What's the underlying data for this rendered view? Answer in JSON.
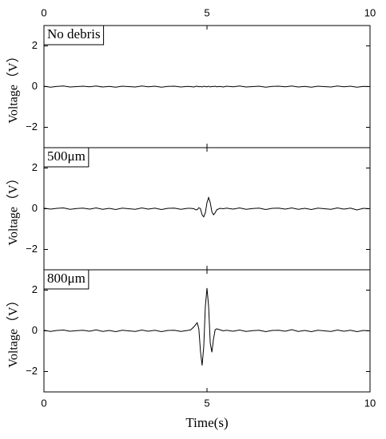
{
  "chart_data": [
    {
      "type": "line",
      "annotation": "No debris",
      "ylabel": "Voltage（V）",
      "x": [
        0,
        0.2,
        0.4,
        0.6,
        0.8,
        1,
        1.2,
        1.4,
        1.6,
        1.8,
        2,
        2.2,
        2.4,
        2.6,
        2.8,
        3,
        3.2,
        3.4,
        3.6,
        3.8,
        4,
        4.2,
        4.4,
        4.5,
        4.6,
        4.65,
        4.7,
        4.75,
        4.8,
        4.85,
        4.9,
        4.95,
        5,
        5.05,
        5.1,
        5.15,
        5.2,
        5.25,
        5.3,
        5.4,
        5.5,
        5.6,
        5.8,
        6,
        6.2,
        6.4,
        6.6,
        6.8,
        7,
        7.2,
        7.4,
        7.6,
        7.8,
        8,
        8.2,
        8.4,
        8.6,
        8.8,
        9,
        9.2,
        9.4,
        9.6,
        9.8,
        10
      ],
      "values": [
        0.02,
        -0.03,
        0.01,
        0.03,
        -0.02,
        0,
        0.02,
        -0.01,
        0.03,
        -0.02,
        0.01,
        -0.03,
        0.02,
        0,
        -0.02,
        0.03,
        -0.01,
        0.02,
        -0.03,
        0.01,
        0.02,
        -0.02,
        0.01,
        0,
        -0.02,
        0.01,
        0.02,
        -0.01,
        0.01,
        -0.02,
        0.02,
        0,
        -0.01,
        0.02,
        -0.02,
        0.01,
        0,
        0.02,
        -0.01,
        0.01,
        -0.02,
        0.02,
        -0.01,
        0.03,
        -0.02,
        0,
        0.02,
        -0.03,
        0.01,
        0.02,
        -0.01,
        0.03,
        -0.02,
        0.01,
        -0.03,
        0.02,
        0,
        -0.02,
        0.03,
        -0.01,
        0.02,
        -0.03,
        0.01,
        0
      ],
      "color": "#000000",
      "xlim": [
        0,
        10
      ],
      "xticks": [
        0,
        5,
        10
      ],
      "xticks_position": "top",
      "ylim": [
        -3,
        3
      ],
      "yticks": [
        {
          "value": -2,
          "label": "−2"
        },
        0,
        2
      ]
    },
    {
      "type": "line",
      "annotation": "500μm",
      "ylabel": "Voltage（V）",
      "x": [
        0,
        0.2,
        0.4,
        0.6,
        0.8,
        1,
        1.2,
        1.4,
        1.6,
        1.8,
        2,
        2.2,
        2.4,
        2.6,
        2.8,
        3,
        3.2,
        3.4,
        3.6,
        3.8,
        4,
        4.2,
        4.4,
        4.5,
        4.6,
        4.65,
        4.7,
        4.75,
        4.8,
        4.85,
        4.9,
        4.95,
        5,
        5.05,
        5.1,
        5.15,
        5.2,
        5.25,
        5.3,
        5.4,
        5.5,
        5.6,
        5.8,
        6,
        6.2,
        6.4,
        6.6,
        6.8,
        7,
        7.2,
        7.4,
        7.6,
        7.8,
        8,
        8.2,
        8.4,
        8.6,
        8.8,
        9,
        9.2,
        9.4,
        9.6,
        9.8,
        10
      ],
      "values": [
        0.03,
        -0.02,
        0.02,
        0.04,
        -0.03,
        0.01,
        0.03,
        -0.02,
        0.04,
        -0.03,
        0.02,
        -0.04,
        0.03,
        0,
        -0.03,
        0.04,
        -0.02,
        0.03,
        -0.04,
        0.02,
        0.03,
        -0.03,
        0.02,
        0.02,
        0,
        -0.05,
        -0.05,
        0.05,
        0,
        -0.3,
        -0.4,
        -0.2,
        0.3,
        0.55,
        0.3,
        -0.15,
        -0.3,
        -0.2,
        -0.05,
        0.02,
        0,
        0.03,
        -0.02,
        0.04,
        -0.03,
        0.01,
        0.03,
        -0.04,
        0.02,
        0.03,
        -0.02,
        0.04,
        -0.03,
        0.02,
        -0.04,
        0.03,
        0,
        -0.03,
        0.04,
        -0.02,
        0.03,
        -0.06,
        0.02,
        0
      ],
      "color": "#000000",
      "xlim": [
        0,
        10
      ],
      "xticks": [
        0,
        5,
        10
      ],
      "ylim": [
        -3,
        3
      ],
      "yticks": [
        {
          "value": -2,
          "label": "−2"
        },
        0,
        2
      ]
    },
    {
      "type": "line",
      "annotation": "800μm",
      "ylabel": "Voltage（V）",
      "xlabel": "Time(s)",
      "x": [
        0,
        0.2,
        0.4,
        0.6,
        0.8,
        1,
        1.2,
        1.4,
        1.6,
        1.8,
        2,
        2.2,
        2.4,
        2.6,
        2.8,
        3,
        3.2,
        3.4,
        3.6,
        3.8,
        4,
        4.2,
        4.4,
        4.5,
        4.6,
        4.65,
        4.7,
        4.75,
        4.8,
        4.85,
        4.9,
        4.95,
        5,
        5.05,
        5.1,
        5.15,
        5.2,
        5.25,
        5.3,
        5.4,
        5.5,
        5.6,
        5.8,
        6,
        6.2,
        6.4,
        6.6,
        6.8,
        7,
        7.2,
        7.4,
        7.6,
        7.8,
        8,
        8.2,
        8.4,
        8.6,
        8.8,
        9,
        9.2,
        9.4,
        9.6,
        9.8,
        10
      ],
      "values": [
        0.03,
        -0.03,
        0.02,
        0.04,
        -0.02,
        0.01,
        0.03,
        -0.02,
        0.05,
        -0.03,
        0.02,
        -0.04,
        0.03,
        0,
        -0.03,
        0.04,
        -0.02,
        0.03,
        -0.04,
        0.02,
        0.03,
        -0.03,
        0.02,
        0.05,
        0.2,
        0.3,
        0.4,
        0.1,
        -1.0,
        -1.7,
        -0.8,
        1.2,
        2.1,
        1.2,
        -0.6,
        -1.05,
        -0.4,
        0.05,
        0.1,
        0.05,
        0,
        0.03,
        -0.02,
        0.04,
        -0.03,
        0.01,
        0.03,
        -0.04,
        0.02,
        0.03,
        -0.02,
        0.06,
        -0.03,
        0.02,
        -0.04,
        0.03,
        0,
        -0.03,
        0.04,
        -0.02,
        0.03,
        -0.04,
        0.02,
        0
      ],
      "color": "#000000",
      "xlim": [
        0,
        10
      ],
      "xticks": [
        0,
        5,
        10
      ],
      "xticks_position": "bottom",
      "ylim": [
        -3,
        3
      ],
      "yticks": [
        {
          "value": -2,
          "label": "−2"
        },
        0,
        2
      ]
    }
  ]
}
